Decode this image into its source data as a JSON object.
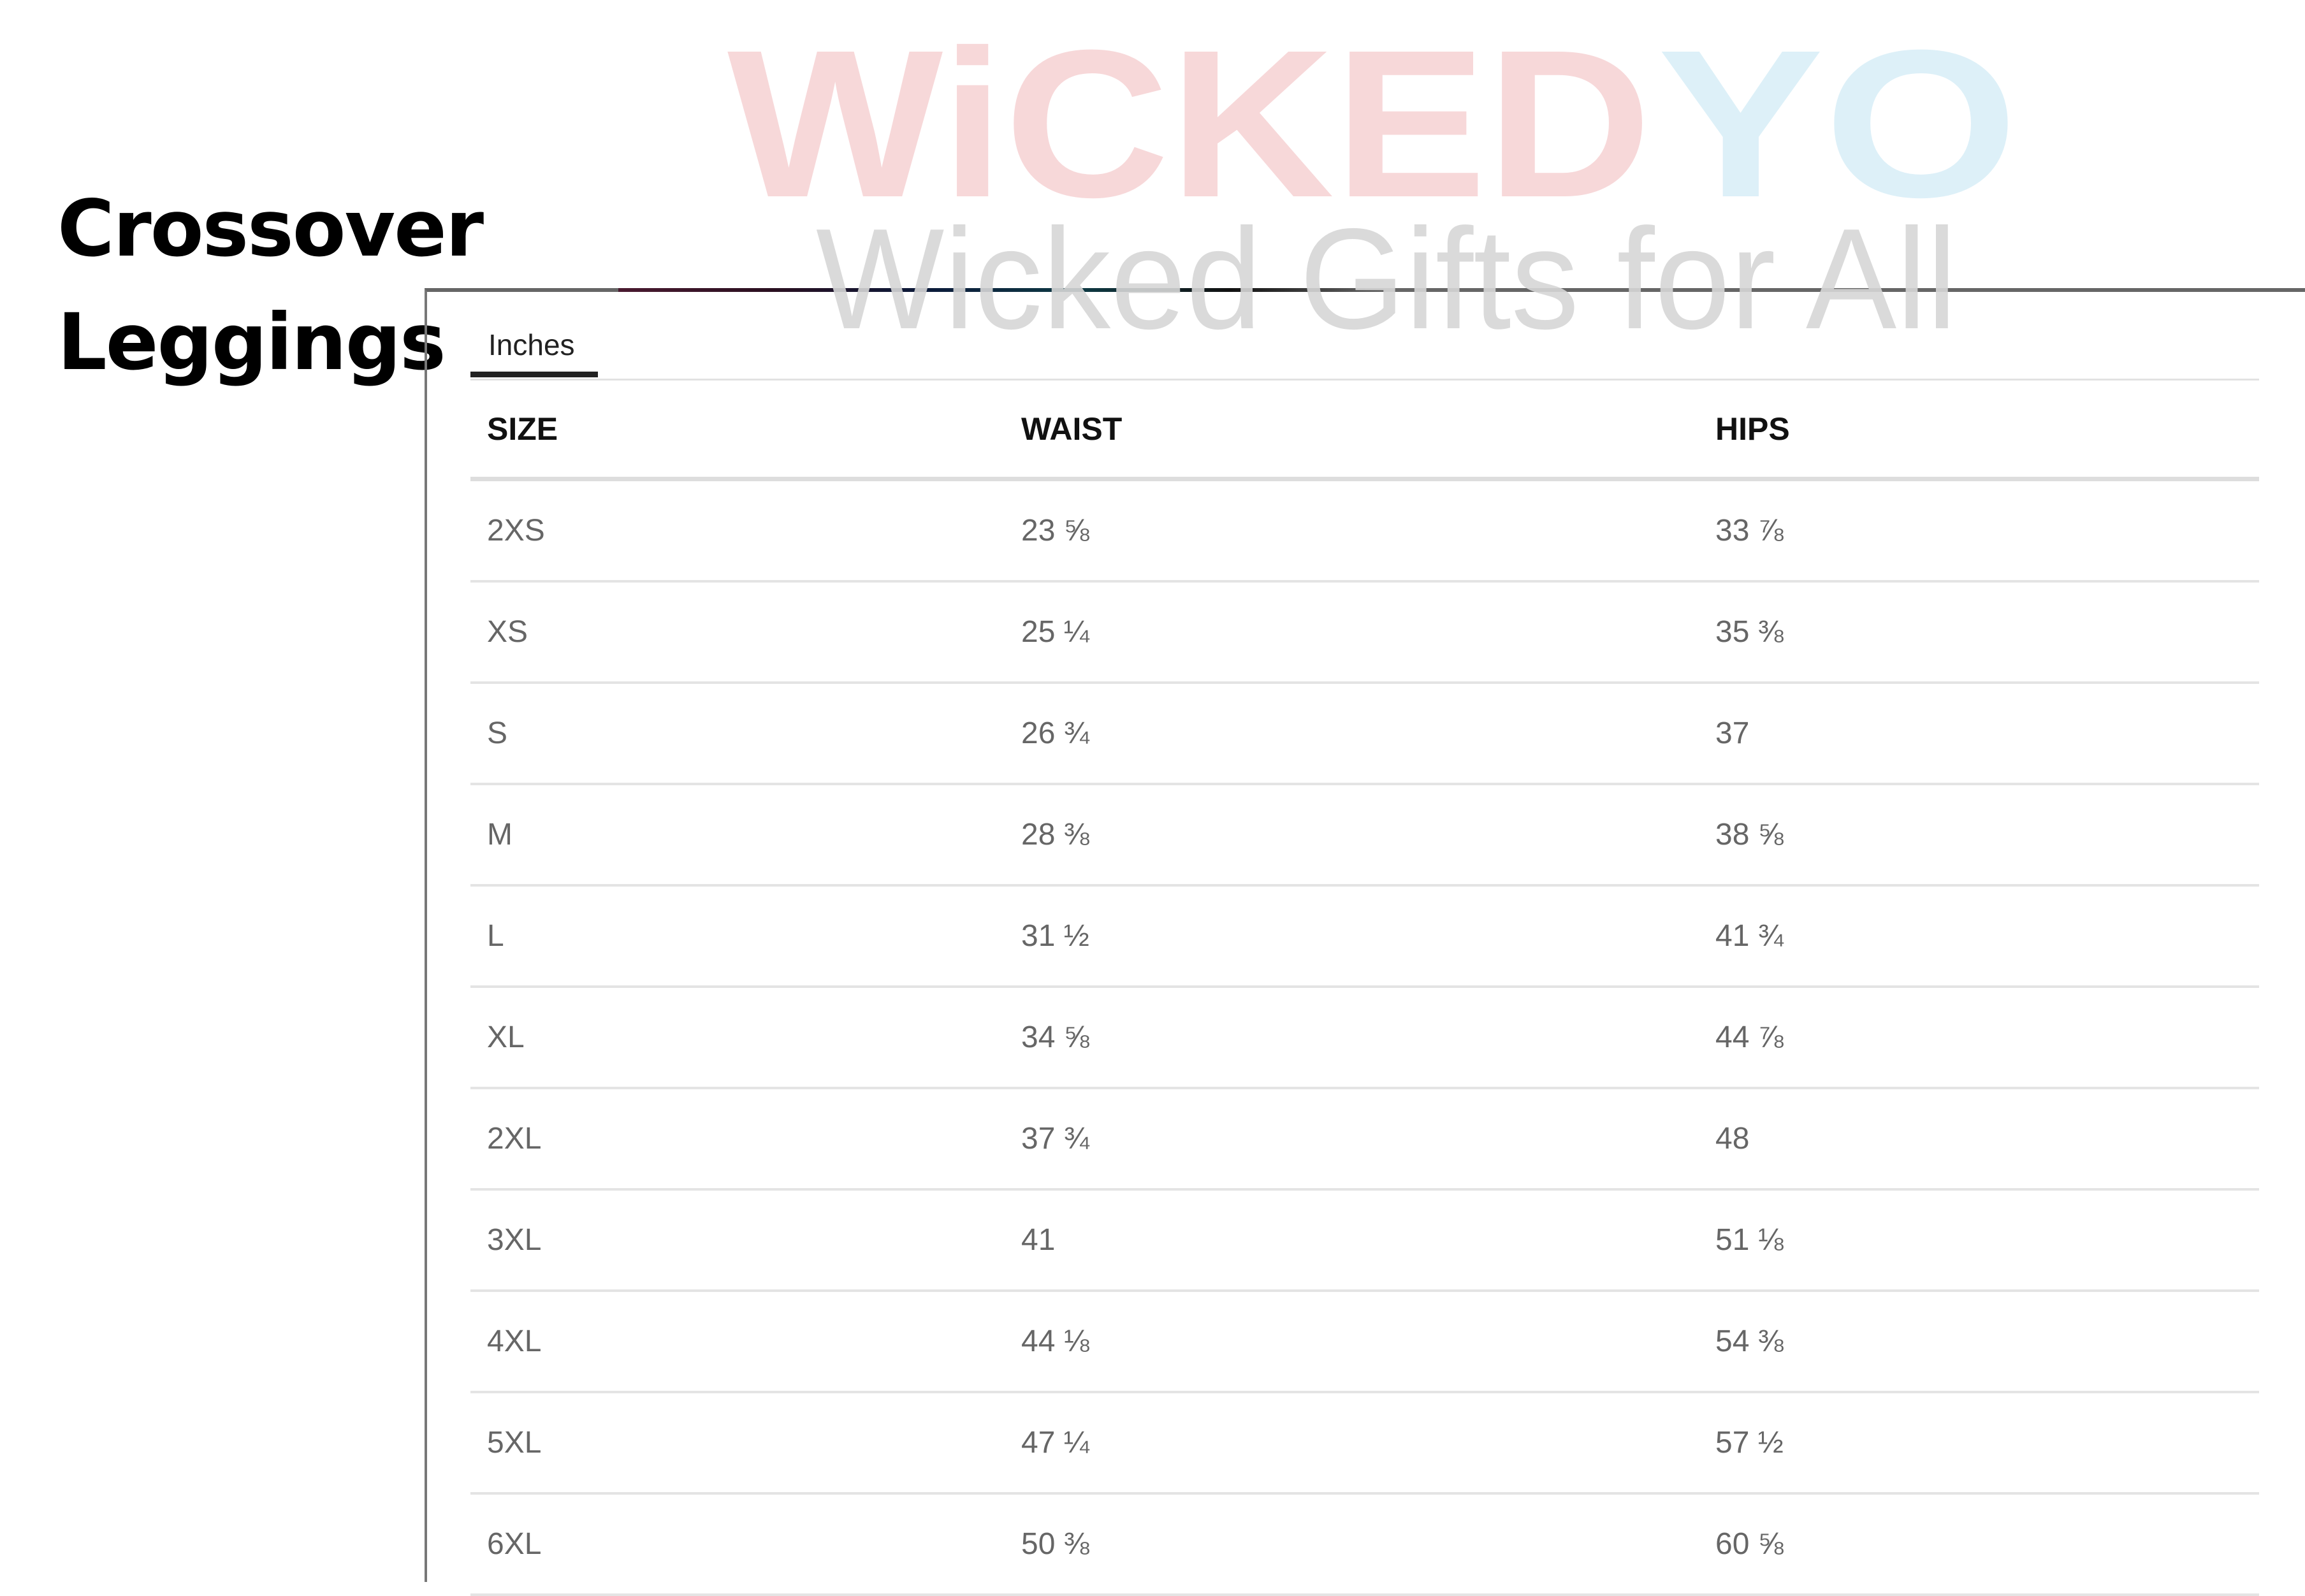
{
  "title": {
    "line1": "Crossover",
    "line2": "Leggings"
  },
  "watermark": {
    "brand": "WiCKEDYO",
    "brand_main": "WiCKED",
    "brand_accent": "YO",
    "tagline": "Wicked Gifts for All",
    "colors": {
      "main": "#f7d6d8",
      "accent": "#dcf0f8",
      "tagline": "#d6d6d6"
    }
  },
  "tabs": [
    {
      "label": "Inches",
      "active": true
    }
  ],
  "table": {
    "headers": [
      "SIZE",
      "WAIST",
      "HIPS"
    ],
    "rows": [
      [
        "2XS",
        "23 ⅝",
        "33 ⅞"
      ],
      [
        "XS",
        "25 ¼",
        "35 ⅜"
      ],
      [
        "S",
        "26 ¾",
        "37"
      ],
      [
        "M",
        "28 ⅜",
        "38 ⅝"
      ],
      [
        "L",
        "31 ½",
        "41 ¾"
      ],
      [
        "XL",
        "34 ⅝",
        "44 ⅞"
      ],
      [
        "2XL",
        "37 ¾",
        "48"
      ],
      [
        "3XL",
        "41",
        "51 ⅛"
      ],
      [
        "4XL",
        "44 ⅛",
        "54 ⅜"
      ],
      [
        "5XL",
        "47 ¼",
        "57 ½"
      ],
      [
        "6XL",
        "50 ⅜",
        "60 ⅝"
      ]
    ]
  }
}
